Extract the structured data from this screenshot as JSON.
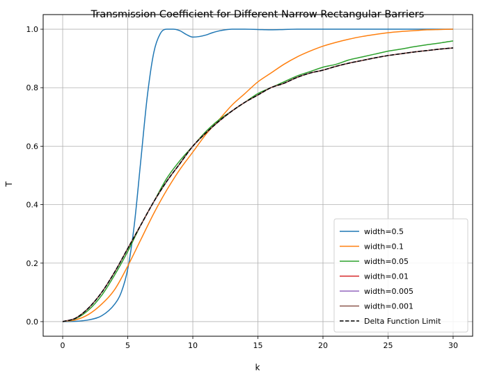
{
  "chart_data": {
    "type": "line",
    "title": "Transmission Coefficient for Different Narrow Rectangular Barriers",
    "xlabel": "k",
    "ylabel": "T",
    "xlim": [
      -1.5,
      31.5
    ],
    "ylim": [
      -0.05,
      1.05
    ],
    "xticks": [
      0,
      5,
      10,
      15,
      20,
      25,
      30
    ],
    "yticks": [
      0.0,
      0.2,
      0.4,
      0.6,
      0.8,
      1.0
    ],
    "xtick_labels": [
      "0",
      "5",
      "10",
      "15",
      "20",
      "25",
      "30"
    ],
    "ytick_labels": [
      "0.0",
      "0.2",
      "0.4",
      "0.6",
      "0.8",
      "1.0"
    ],
    "grid": true,
    "legend_position": "lower-right",
    "series": [
      {
        "name": "width=0.5",
        "color": "#1f77b4",
        "dash": "solid",
        "x": [
          0,
          1,
          2,
          3,
          4,
          4.5,
          5,
          5.5,
          6,
          6.5,
          7,
          7.5,
          8,
          8.5,
          9,
          9.5,
          10,
          10.5,
          11,
          11.5,
          12,
          12.5,
          13,
          13.5,
          14,
          15,
          16,
          17,
          18,
          19,
          20,
          22,
          24,
          26,
          28,
          30
        ],
        "y": [
          0.0,
          0.001,
          0.006,
          0.02,
          0.06,
          0.1,
          0.18,
          0.33,
          0.55,
          0.77,
          0.92,
          0.985,
          1.0,
          1.0,
          0.995,
          0.982,
          0.973,
          0.975,
          0.98,
          0.988,
          0.994,
          0.998,
          1.0,
          1.0,
          1.0,
          0.999,
          0.998,
          0.999,
          1.0,
          1.0,
          1.0,
          1.0,
          1.0,
          1.0,
          1.0,
          1.0
        ]
      },
      {
        "name": "width=0.1",
        "color": "#ff7f0e",
        "dash": "solid",
        "x": [
          0,
          1,
          2,
          3,
          4,
          5,
          6,
          7,
          8,
          9,
          10,
          11,
          12,
          13,
          14,
          15,
          16,
          17,
          18,
          19,
          20,
          21,
          22,
          23,
          24,
          25,
          26,
          27,
          28,
          29,
          30
        ],
        "y": [
          0.0,
          0.006,
          0.025,
          0.06,
          0.11,
          0.19,
          0.28,
          0.37,
          0.45,
          0.52,
          0.58,
          0.64,
          0.69,
          0.74,
          0.78,
          0.82,
          0.85,
          0.88,
          0.905,
          0.925,
          0.942,
          0.955,
          0.966,
          0.975,
          0.982,
          0.988,
          0.992,
          0.995,
          0.998,
          0.999,
          1.0
        ]
      },
      {
        "name": "width=0.05",
        "color": "#2ca02c",
        "dash": "solid",
        "x": [
          0,
          1,
          2,
          3,
          4,
          5,
          6,
          7,
          8,
          9,
          10,
          11,
          12,
          13,
          14,
          15,
          16,
          17,
          18,
          19,
          20,
          21,
          22,
          23,
          24,
          25,
          26,
          27,
          28,
          29,
          30
        ],
        "y": [
          0.0,
          0.01,
          0.04,
          0.09,
          0.16,
          0.24,
          0.33,
          0.41,
          0.49,
          0.55,
          0.6,
          0.65,
          0.69,
          0.72,
          0.75,
          0.78,
          0.8,
          0.82,
          0.84,
          0.855,
          0.87,
          0.88,
          0.895,
          0.905,
          0.915,
          0.925,
          0.932,
          0.94,
          0.947,
          0.953,
          0.96
        ]
      },
      {
        "name": "width=0.01",
        "color": "#d62728",
        "dash": "solid",
        "x": [
          0,
          1,
          2,
          3,
          4,
          5,
          6,
          7,
          8,
          9,
          10,
          11,
          12,
          13,
          14,
          15,
          16,
          17,
          18,
          19,
          20,
          21,
          22,
          23,
          24,
          25,
          26,
          27,
          28,
          29,
          30
        ],
        "y": [
          0.0,
          0.012,
          0.047,
          0.1,
          0.17,
          0.25,
          0.33,
          0.41,
          0.48,
          0.54,
          0.6,
          0.645,
          0.685,
          0.72,
          0.75,
          0.775,
          0.8,
          0.815,
          0.835,
          0.85,
          0.86,
          0.873,
          0.884,
          0.893,
          0.902,
          0.91,
          0.916,
          0.922,
          0.927,
          0.932,
          0.936
        ]
      },
      {
        "name": "width=0.005",
        "color": "#9467bd",
        "dash": "solid",
        "x": [
          0,
          1,
          2,
          3,
          4,
          5,
          6,
          7,
          8,
          9,
          10,
          11,
          12,
          13,
          14,
          15,
          16,
          17,
          18,
          19,
          20,
          21,
          22,
          23,
          24,
          25,
          26,
          27,
          28,
          29,
          30
        ],
        "y": [
          0.0,
          0.012,
          0.047,
          0.1,
          0.17,
          0.25,
          0.33,
          0.41,
          0.48,
          0.54,
          0.6,
          0.645,
          0.685,
          0.72,
          0.75,
          0.775,
          0.8,
          0.815,
          0.835,
          0.85,
          0.86,
          0.873,
          0.884,
          0.893,
          0.902,
          0.91,
          0.916,
          0.922,
          0.927,
          0.932,
          0.936
        ]
      },
      {
        "name": "width=0.001",
        "color": "#8c564b",
        "dash": "solid",
        "x": [
          0,
          1,
          2,
          3,
          4,
          5,
          6,
          7,
          8,
          9,
          10,
          11,
          12,
          13,
          14,
          15,
          16,
          17,
          18,
          19,
          20,
          21,
          22,
          23,
          24,
          25,
          26,
          27,
          28,
          29,
          30
        ],
        "y": [
          0.0,
          0.012,
          0.047,
          0.1,
          0.17,
          0.25,
          0.33,
          0.41,
          0.48,
          0.54,
          0.6,
          0.645,
          0.685,
          0.72,
          0.75,
          0.775,
          0.8,
          0.815,
          0.835,
          0.85,
          0.86,
          0.873,
          0.884,
          0.893,
          0.902,
          0.91,
          0.916,
          0.922,
          0.927,
          0.932,
          0.936
        ]
      },
      {
        "name": "Delta Function Limit",
        "color": "#000000",
        "dash": "dashed",
        "x": [
          0,
          1,
          2,
          3,
          4,
          5,
          6,
          7,
          8,
          9,
          10,
          11,
          12,
          13,
          14,
          15,
          16,
          17,
          18,
          19,
          20,
          21,
          22,
          23,
          24,
          25,
          26,
          27,
          28,
          29,
          30
        ],
        "y": [
          0.0,
          0.012,
          0.047,
          0.1,
          0.17,
          0.25,
          0.33,
          0.41,
          0.48,
          0.54,
          0.6,
          0.645,
          0.685,
          0.72,
          0.75,
          0.775,
          0.8,
          0.815,
          0.835,
          0.85,
          0.86,
          0.873,
          0.884,
          0.893,
          0.902,
          0.91,
          0.916,
          0.922,
          0.927,
          0.932,
          0.936
        ]
      }
    ]
  }
}
